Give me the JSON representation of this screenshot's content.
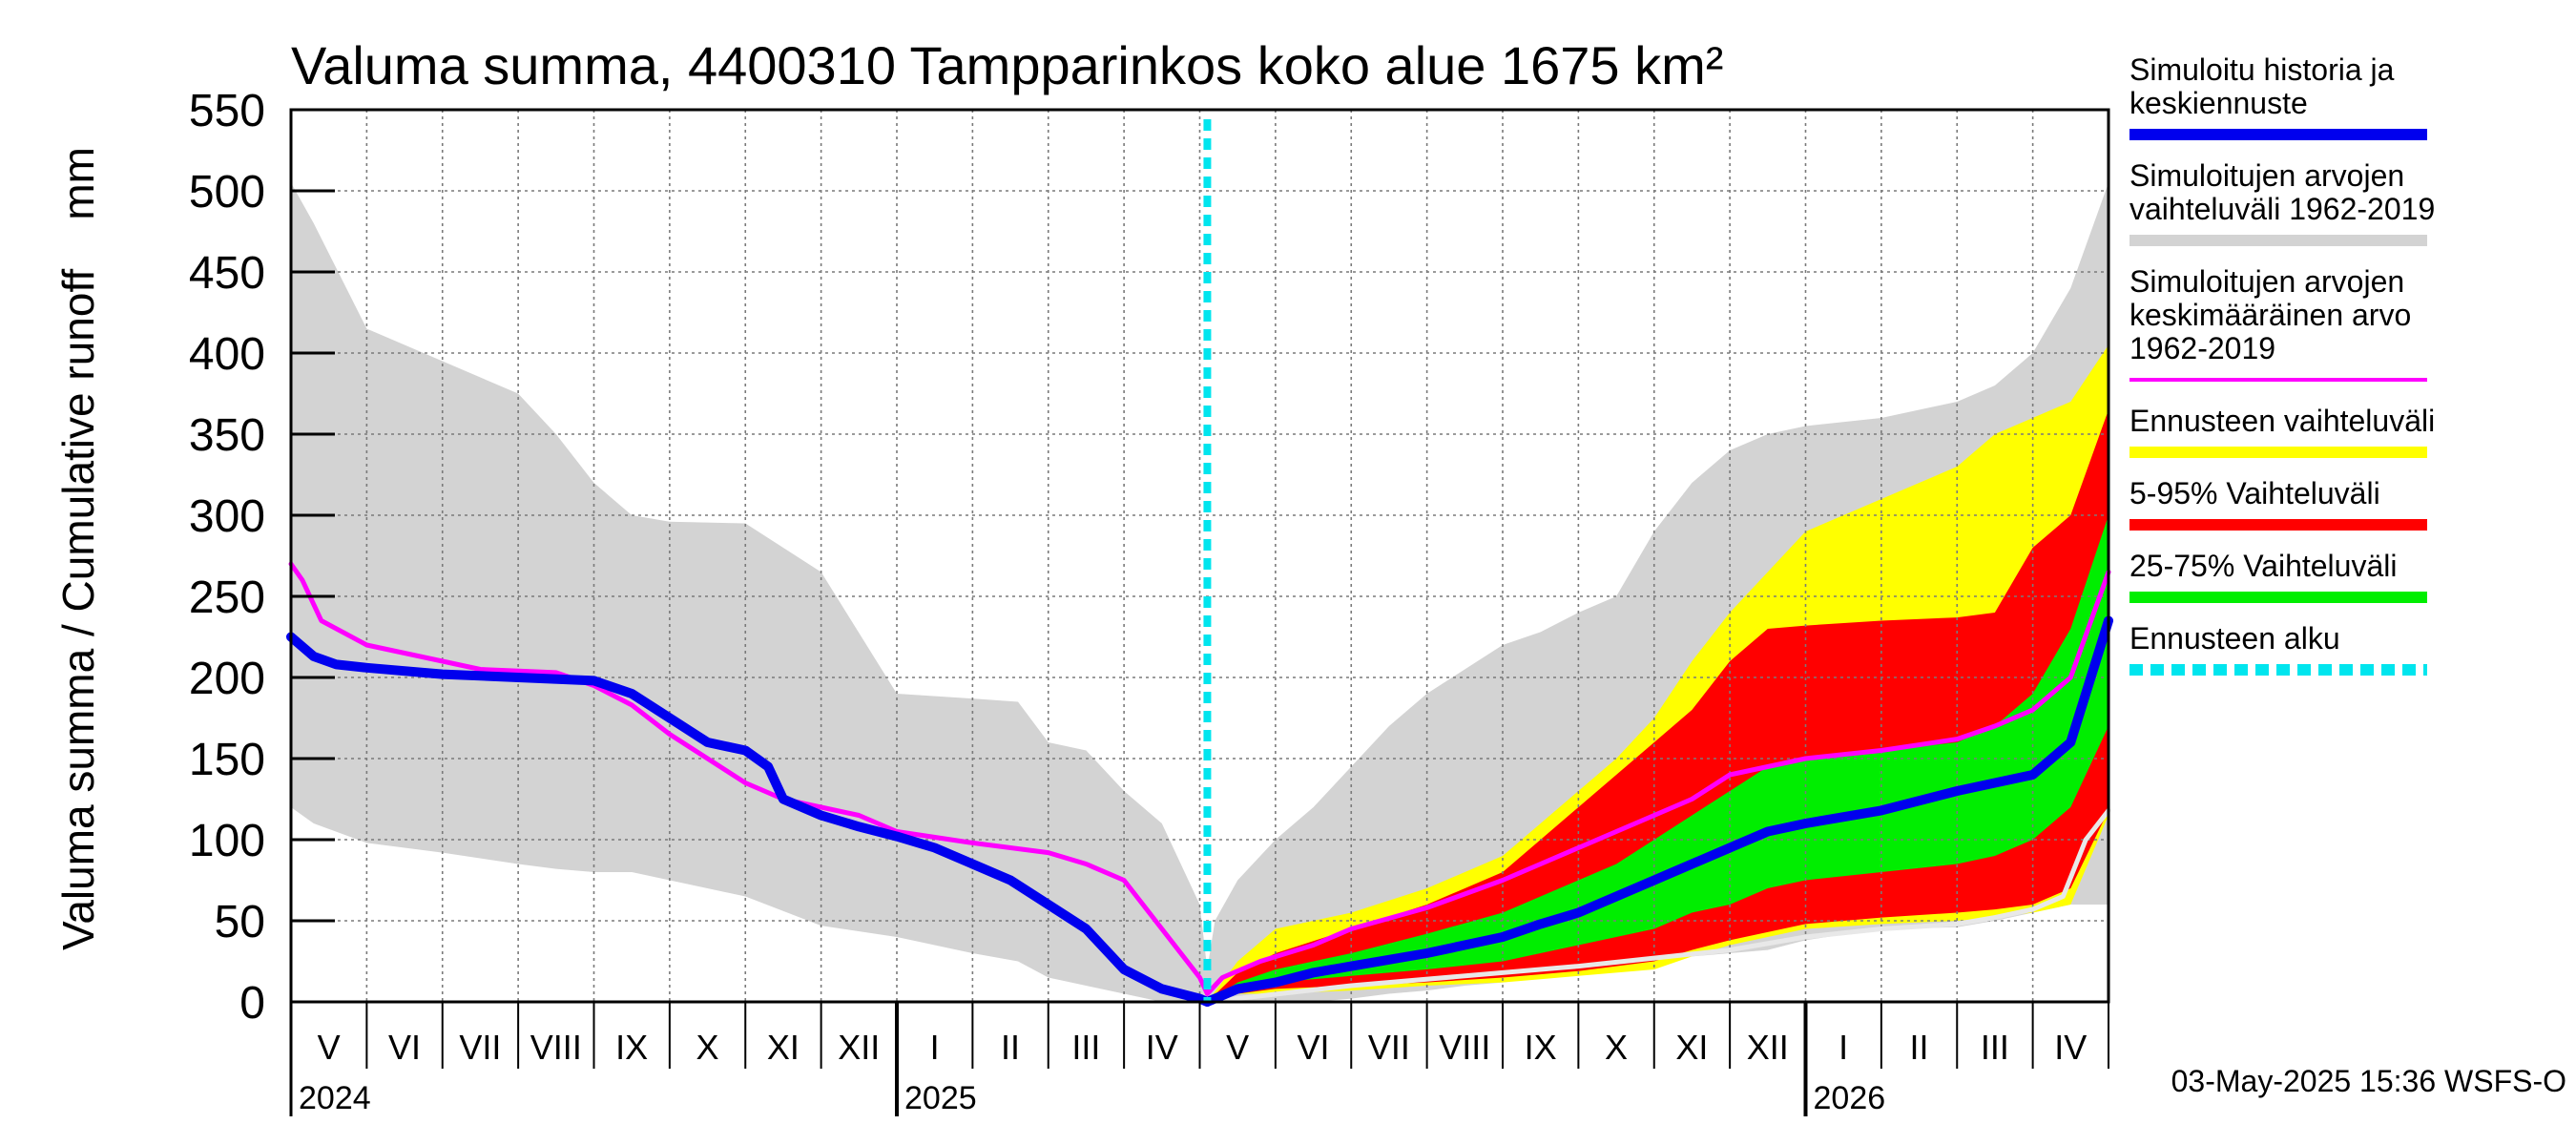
{
  "chart_data": {
    "type": "area",
    "title": "Valuma summa, 4400310 Tampparinkos koko alue 1675 km²",
    "ylabel": "Valuma summa / Cumulative runoff    mm",
    "ylim": [
      0,
      550
    ],
    "yticks": [
      0,
      50,
      100,
      150,
      200,
      250,
      300,
      350,
      400,
      450,
      500,
      550
    ],
    "x_unit": "months since start of May 2024",
    "xlim": [
      0,
      24
    ],
    "forecast_start": 12.1,
    "month_labels": [
      "V",
      "VI",
      "VII",
      "VIII",
      "IX",
      "X",
      "XI",
      "XII",
      "I",
      "II",
      "III",
      "IV",
      "V",
      "VI",
      "VII",
      "VIII",
      "IX",
      "X",
      "XI",
      "XII",
      "I",
      "II",
      "III",
      "IV"
    ],
    "year_labels": [
      {
        "label": "2024",
        "x": 0
      },
      {
        "label": "2025",
        "x": 8
      },
      {
        "label": "2026",
        "x": 20
      }
    ],
    "year_ticks": [
      8,
      20
    ],
    "timestamp": "03-May-2025 15:36 WSFS-O",
    "series": [
      {
        "name": "range_1962_2019",
        "kind": "band",
        "color": "#d3d3d3",
        "x": [
          0,
          0.3,
          1,
          2,
          3,
          3.5,
          4,
          4.5,
          5,
          6,
          7,
          8,
          9,
          9.6,
          10,
          10.5,
          11,
          11.5,
          12,
          12.1,
          12.2,
          12.5,
          13,
          13.5,
          14,
          14.5,
          15,
          15.5,
          16,
          16.5,
          17,
          17.5,
          18,
          18.5,
          19,
          19.5,
          20,
          21,
          22,
          22.5,
          23,
          23.5,
          24
        ],
        "upper": [
          505,
          480,
          415,
          395,
          375,
          350,
          320,
          300,
          296,
          295,
          265,
          190,
          187,
          185,
          160,
          155,
          130,
          110,
          60,
          20,
          50,
          75,
          100,
          120,
          145,
          170,
          190,
          205,
          220,
          228,
          240,
          250,
          290,
          320,
          340,
          350,
          355,
          360,
          370,
          380,
          400,
          440,
          505
        ],
        "lower": [
          120,
          110,
          98,
          92,
          85,
          82,
          80,
          80,
          75,
          65,
          47,
          40,
          30,
          25,
          15,
          10,
          5,
          0,
          0,
          0,
          0,
          0,
          0,
          0,
          2,
          5,
          7,
          10,
          12,
          15,
          18,
          22,
          25,
          28,
          30,
          32,
          38,
          45,
          46,
          50,
          55,
          60,
          60
        ]
      },
      {
        "name": "forecast_range",
        "kind": "band",
        "color": "#ffff00",
        "x": [
          12.1,
          12.5,
          13,
          14,
          15,
          16,
          16.5,
          17,
          17.5,
          18,
          18.5,
          19,
          19.5,
          20,
          21,
          22,
          22.5,
          23,
          23.5,
          24
        ],
        "upper": [
          0,
          25,
          45,
          55,
          70,
          90,
          110,
          130,
          150,
          175,
          210,
          240,
          265,
          290,
          310,
          330,
          350,
          360,
          370,
          405
        ],
        "lower": [
          0,
          5,
          5,
          7,
          10,
          12,
          14,
          16,
          18,
          20,
          28,
          35,
          40,
          45,
          48,
          50,
          52,
          55,
          60,
          115
        ]
      },
      {
        "name": "range_5_95",
        "kind": "band",
        "color": "#ff0000",
        "x": [
          12.1,
          12.5,
          13,
          14,
          15,
          16,
          16.5,
          17,
          17.5,
          18,
          18.5,
          19,
          19.5,
          20,
          21,
          22,
          22.5,
          23,
          23.5,
          24
        ],
        "upper": [
          0,
          18,
          30,
          45,
          60,
          80,
          100,
          120,
          140,
          160,
          180,
          210,
          230,
          232,
          235,
          237,
          240,
          280,
          300,
          365
        ],
        "lower": [
          0,
          5,
          8,
          10,
          12,
          15,
          17,
          19,
          22,
          25,
          32,
          38,
          43,
          48,
          52,
          55,
          57,
          60,
          70,
          118
        ]
      },
      {
        "name": "range_25_75",
        "kind": "band",
        "color": "#00ee00",
        "x": [
          12.1,
          12.5,
          13,
          14,
          15,
          16,
          16.5,
          17,
          17.5,
          18,
          18.5,
          19,
          19.5,
          20,
          21,
          22,
          22.5,
          23,
          23.5,
          24
        ],
        "upper": [
          0,
          12,
          20,
          30,
          42,
          55,
          65,
          75,
          85,
          100,
          115,
          130,
          145,
          150,
          155,
          160,
          170,
          190,
          230,
          300
        ],
        "lower": [
          0,
          8,
          12,
          16,
          20,
          25,
          30,
          35,
          40,
          45,
          55,
          60,
          70,
          75,
          80,
          85,
          90,
          100,
          120,
          170
        ]
      },
      {
        "name": "mean_1962_2019",
        "kind": "line",
        "color": "#ff00ff",
        "width": 5,
        "x": [
          0,
          0.15,
          0.4,
          1,
          2,
          2.5,
          3.5,
          4,
          4.5,
          5,
          5.5,
          6,
          6.5,
          7,
          7.5,
          8,
          9,
          10,
          10.5,
          11,
          11.5,
          12,
          12.1,
          12.3,
          12.8,
          13.5,
          14,
          15,
          16,
          16.5,
          17,
          17.5,
          18,
          18.5,
          19,
          19.5,
          20,
          21,
          22,
          22.5,
          23,
          23.5,
          24
        ],
        "values": [
          270,
          260,
          235,
          220,
          210,
          205,
          203,
          195,
          183,
          165,
          150,
          135,
          125,
          120,
          115,
          105,
          98,
          92,
          85,
          75,
          45,
          15,
          5,
          15,
          25,
          35,
          45,
          58,
          75,
          85,
          95,
          105,
          115,
          125,
          140,
          145,
          150,
          155,
          162,
          170,
          180,
          200,
          265
        ]
      },
      {
        "name": "lower_extreme_line",
        "kind": "line",
        "color": "#e8e8e8",
        "width": 5,
        "x": [
          12.1,
          14,
          16,
          17,
          18,
          19,
          20,
          21,
          22,
          22.5,
          23,
          23.4,
          23.7,
          24
        ],
        "values": [
          0,
          10,
          18,
          22,
          27,
          32,
          40,
          45,
          48,
          52,
          57,
          65,
          100,
          118
        ]
      },
      {
        "name": "simulated_median",
        "kind": "line",
        "color": "#0000ee",
        "width": 10,
        "x": [
          0,
          0.3,
          0.6,
          1,
          2,
          3,
          4,
          4.5,
          5,
          5.5,
          6,
          6.3,
          6.5,
          7,
          7.5,
          8,
          8.5,
          9,
          9.5,
          10,
          10.5,
          11,
          11.5,
          12,
          12.1,
          12.5,
          13,
          13.5,
          14,
          15,
          16,
          16.5,
          17,
          17.5,
          18,
          18.5,
          19,
          19.5,
          20,
          21,
          22,
          22.5,
          23,
          23.5,
          24
        ],
        "values": [
          225,
          213,
          208,
          206,
          202,
          200,
          198,
          190,
          175,
          160,
          155,
          145,
          125,
          115,
          108,
          102,
          95,
          85,
          75,
          60,
          45,
          20,
          8,
          2,
          0,
          8,
          12,
          18,
          22,
          30,
          40,
          48,
          55,
          65,
          75,
          85,
          95,
          105,
          110,
          118,
          130,
          135,
          140,
          160,
          235
        ]
      },
      {
        "name": "forecast_start_line",
        "kind": "vline",
        "color": "#00e5ee",
        "x": 12.1
      }
    ],
    "legend": [
      {
        "lines": [
          "Simuloitu historia ja",
          "keskiennuste"
        ],
        "color": "#0000ee",
        "style": "solid"
      },
      {
        "lines": [
          "Simuloitujen arvojen",
          "vaihteluväli 1962-2019"
        ],
        "color": "#d3d3d3",
        "style": "solid"
      },
      {
        "lines": [
          "Simuloitujen arvojen",
          "keskimääräinen arvo",
          "   1962-2019"
        ],
        "color": "#ff00ff",
        "style": "thin"
      },
      {
        "lines": [
          "Ennusteen vaihteluväli"
        ],
        "color": "#ffff00",
        "style": "solid"
      },
      {
        "lines": [
          "5-95% Vaihteluväli"
        ],
        "color": "#ff0000",
        "style": "solid"
      },
      {
        "lines": [
          "25-75% Vaihteluväli"
        ],
        "color": "#00ee00",
        "style": "solid"
      },
      {
        "lines": [
          "Ennusteen alku"
        ],
        "color": "#00e5ee",
        "style": "dashed"
      }
    ]
  }
}
